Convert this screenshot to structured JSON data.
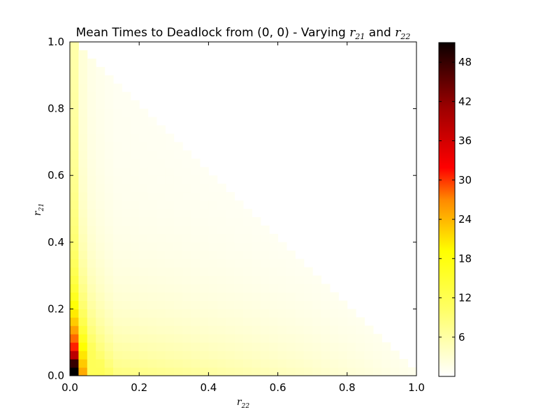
{
  "chart_data": {
    "type": "heatmap",
    "title": {
      "prefix": "Mean Times to Deadlock from (0, 0) - Varying ",
      "var1": "r",
      "var1_sub": "21",
      "middle": " and ",
      "var2": "r",
      "var2_sub": "22"
    },
    "xlabel": {
      "var": "r",
      "sub": "22"
    },
    "ylabel": {
      "var": "r",
      "sub": "21"
    },
    "xlim": [
      0.0,
      1.0
    ],
    "ylim": [
      0.0,
      1.0
    ],
    "x_ticks": [
      0.0,
      0.2,
      0.4,
      0.6,
      0.8,
      1.0
    ],
    "x_tick_labels": [
      "0.0",
      "0.2",
      "0.4",
      "0.6",
      "0.8",
      "1.0"
    ],
    "y_ticks": [
      0.0,
      0.2,
      0.4,
      0.6,
      0.8,
      1.0
    ],
    "y_tick_labels": [
      "0.0",
      "0.2",
      "0.4",
      "0.6",
      "0.8",
      "1.0"
    ],
    "grid": false,
    "colormap": "hot_r",
    "colorbar": {
      "min": 0,
      "max": 51,
      "ticks": [
        6,
        12,
        18,
        24,
        30,
        36,
        42,
        48
      ],
      "tick_labels": [
        "6",
        "12",
        "18",
        "24",
        "30",
        "36",
        "42",
        "48"
      ]
    },
    "grid_size": 40,
    "cell_width": 0.025,
    "defined_region": "r21 + r22 <= 1 (cells outside are blank)",
    "approx_values": [
      {
        "r21": 0.0125,
        "r22": 0.0125,
        "value": 50
      },
      {
        "r21": 0.0375,
        "r22": 0.0125,
        "value": 44
      },
      {
        "r21": 0.0625,
        "r22": 0.0125,
        "value": 38
      },
      {
        "r21": 0.0875,
        "r22": 0.0125,
        "value": 32
      },
      {
        "r21": 0.1125,
        "r22": 0.0125,
        "value": 28
      },
      {
        "r21": 0.1375,
        "r22": 0.0125,
        "value": 25
      },
      {
        "r21": 0.1625,
        "r22": 0.0125,
        "value": 22
      },
      {
        "r21": 0.2125,
        "r22": 0.0125,
        "value": 17
      },
      {
        "r21": 0.3125,
        "r22": 0.0125,
        "value": 13
      },
      {
        "r21": 0.5,
        "r22": 0.0125,
        "value": 9
      },
      {
        "r21": 0.8,
        "r22": 0.0125,
        "value": 5
      },
      {
        "r21": 0.0125,
        "r22": 0.0375,
        "value": 20
      },
      {
        "r21": 0.0125,
        "r22": 0.0625,
        "value": 13
      },
      {
        "r21": 0.0125,
        "r22": 0.2,
        "value": 5
      },
      {
        "r21": 0.0125,
        "r22": 0.5,
        "value": 2
      },
      {
        "r21": 0.0125,
        "r22": 0.8,
        "value": 1
      }
    ]
  }
}
